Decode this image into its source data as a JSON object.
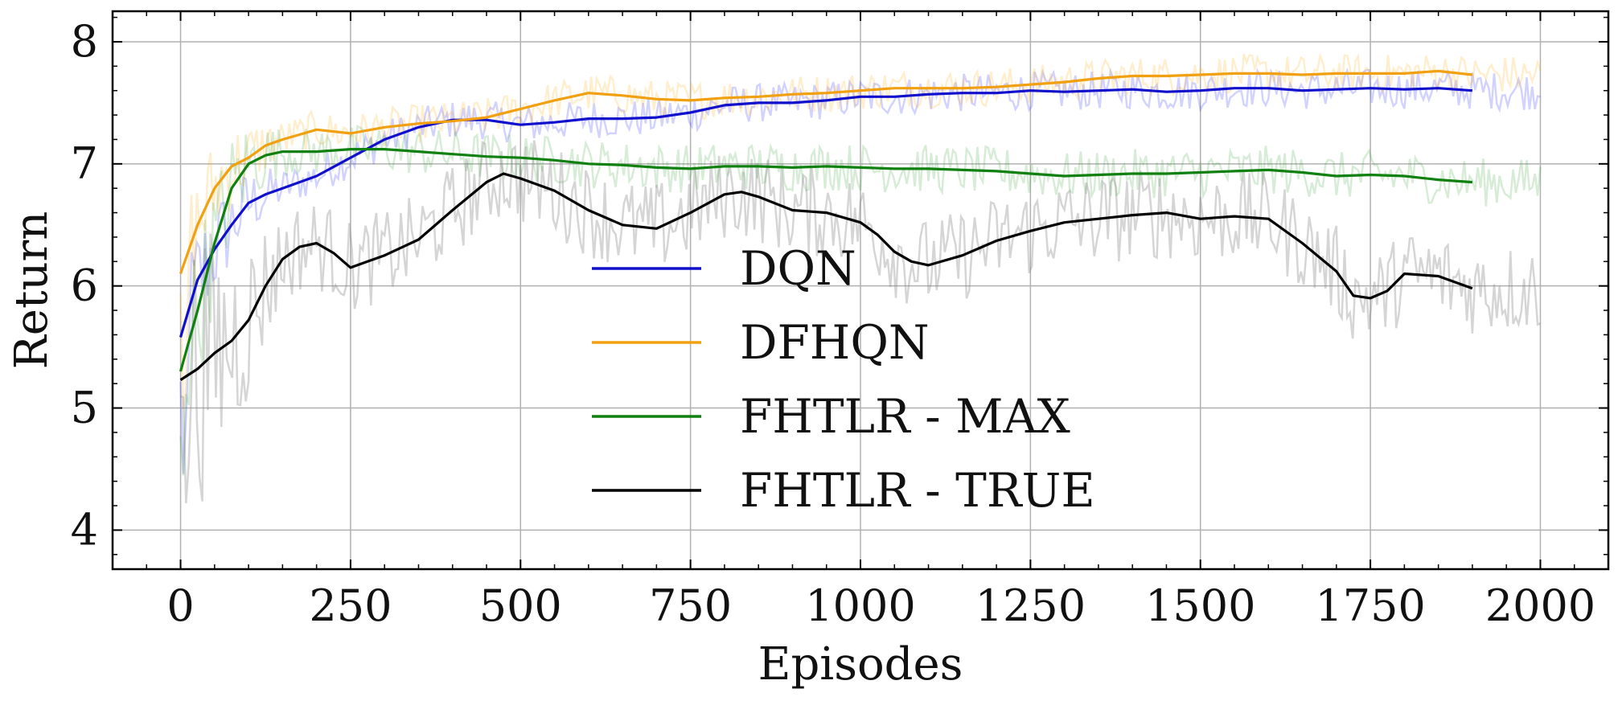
{
  "chart_data": {
    "type": "line",
    "xlabel": "Episodes",
    "ylabel": "Return",
    "xlim": [
      -100,
      2100
    ],
    "ylim": [
      3.68,
      8.25
    ],
    "xticks": [
      0,
      250,
      500,
      750,
      1000,
      1250,
      1500,
      1750,
      2000
    ],
    "xtick_labels": [
      "0",
      "250",
      "500",
      "750",
      "1000",
      "1250",
      "1500",
      "1750",
      "2000"
    ],
    "yticks": [
      4,
      5,
      6,
      7,
      8
    ],
    "ytick_labels": [
      "4",
      "5",
      "6",
      "7",
      "8"
    ],
    "grid": true,
    "legend_position": "center",
    "series": [
      {
        "name": "DQN",
        "color": "#1010cc",
        "x": [
          0,
          25,
          50,
          75,
          100,
          125,
          150,
          200,
          250,
          300,
          350,
          400,
          450,
          500,
          550,
          600,
          650,
          700,
          750,
          800,
          850,
          900,
          950,
          1000,
          1050,
          1100,
          1150,
          1200,
          1250,
          1300,
          1350,
          1400,
          1450,
          1500,
          1550,
          1600,
          1650,
          1700,
          1750,
          1800,
          1850,
          1900
        ],
        "y": [
          5.58,
          6.05,
          6.3,
          6.5,
          6.68,
          6.75,
          6.8,
          6.9,
          7.05,
          7.2,
          7.3,
          7.36,
          7.36,
          7.32,
          7.34,
          7.37,
          7.37,
          7.38,
          7.42,
          7.48,
          7.5,
          7.5,
          7.52,
          7.55,
          7.55,
          7.57,
          7.58,
          7.58,
          7.6,
          7.59,
          7.6,
          7.61,
          7.59,
          7.6,
          7.62,
          7.62,
          7.6,
          7.61,
          7.62,
          7.61,
          7.62,
          7.6
        ]
      },
      {
        "name": "DFHQN",
        "color": "#f0a010",
        "x": [
          0,
          25,
          50,
          75,
          100,
          125,
          150,
          200,
          250,
          300,
          350,
          400,
          450,
          500,
          550,
          600,
          650,
          700,
          750,
          800,
          850,
          900,
          950,
          1000,
          1050,
          1100,
          1150,
          1200,
          1250,
          1300,
          1350,
          1400,
          1450,
          1500,
          1550,
          1600,
          1650,
          1700,
          1750,
          1800,
          1850,
          1900
        ],
        "y": [
          6.1,
          6.5,
          6.8,
          6.98,
          7.05,
          7.15,
          7.2,
          7.28,
          7.25,
          7.3,
          7.33,
          7.35,
          7.38,
          7.45,
          7.52,
          7.58,
          7.56,
          7.53,
          7.52,
          7.54,
          7.55,
          7.57,
          7.58,
          7.6,
          7.62,
          7.62,
          7.62,
          7.63,
          7.65,
          7.67,
          7.7,
          7.72,
          7.72,
          7.73,
          7.74,
          7.74,
          7.73,
          7.74,
          7.74,
          7.74,
          7.76,
          7.73
        ]
      },
      {
        "name": "FHTLR - MAX",
        "color": "#108010",
        "x": [
          0,
          25,
          50,
          75,
          100,
          125,
          150,
          200,
          250,
          300,
          350,
          400,
          450,
          500,
          550,
          600,
          650,
          700,
          750,
          800,
          850,
          900,
          950,
          1000,
          1050,
          1100,
          1150,
          1200,
          1250,
          1300,
          1350,
          1400,
          1450,
          1500,
          1550,
          1600,
          1650,
          1700,
          1750,
          1800,
          1850,
          1900
        ],
        "y": [
          5.3,
          5.8,
          6.35,
          6.8,
          7.0,
          7.07,
          7.1,
          7.1,
          7.12,
          7.12,
          7.1,
          7.08,
          7.06,
          7.05,
          7.03,
          7.0,
          6.99,
          6.97,
          6.96,
          6.98,
          6.98,
          6.97,
          6.98,
          6.97,
          6.96,
          6.96,
          6.95,
          6.94,
          6.92,
          6.9,
          6.91,
          6.92,
          6.92,
          6.93,
          6.94,
          6.95,
          6.93,
          6.9,
          6.91,
          6.9,
          6.87,
          6.85
        ]
      },
      {
        "name": "FHTLR - TRUE",
        "color": "#000000",
        "x": [
          0,
          25,
          50,
          75,
          100,
          125,
          150,
          175,
          200,
          225,
          250,
          275,
          300,
          350,
          400,
          450,
          475,
          500,
          550,
          600,
          650,
          700,
          750,
          800,
          825,
          850,
          900,
          950,
          1000,
          1025,
          1050,
          1075,
          1100,
          1150,
          1200,
          1250,
          1300,
          1350,
          1400,
          1450,
          1500,
          1550,
          1600,
          1650,
          1700,
          1725,
          1750,
          1775,
          1800,
          1850,
          1900
        ],
        "y": [
          5.23,
          5.32,
          5.45,
          5.55,
          5.72,
          6.0,
          6.22,
          6.32,
          6.35,
          6.27,
          6.15,
          6.2,
          6.25,
          6.38,
          6.62,
          6.85,
          6.92,
          6.88,
          6.78,
          6.62,
          6.5,
          6.47,
          6.6,
          6.75,
          6.77,
          6.73,
          6.62,
          6.6,
          6.52,
          6.42,
          6.28,
          6.2,
          6.17,
          6.25,
          6.37,
          6.45,
          6.52,
          6.55,
          6.58,
          6.6,
          6.55,
          6.57,
          6.55,
          6.35,
          6.12,
          5.92,
          5.9,
          5.96,
          6.1,
          6.08,
          5.98
        ]
      }
    ]
  }
}
